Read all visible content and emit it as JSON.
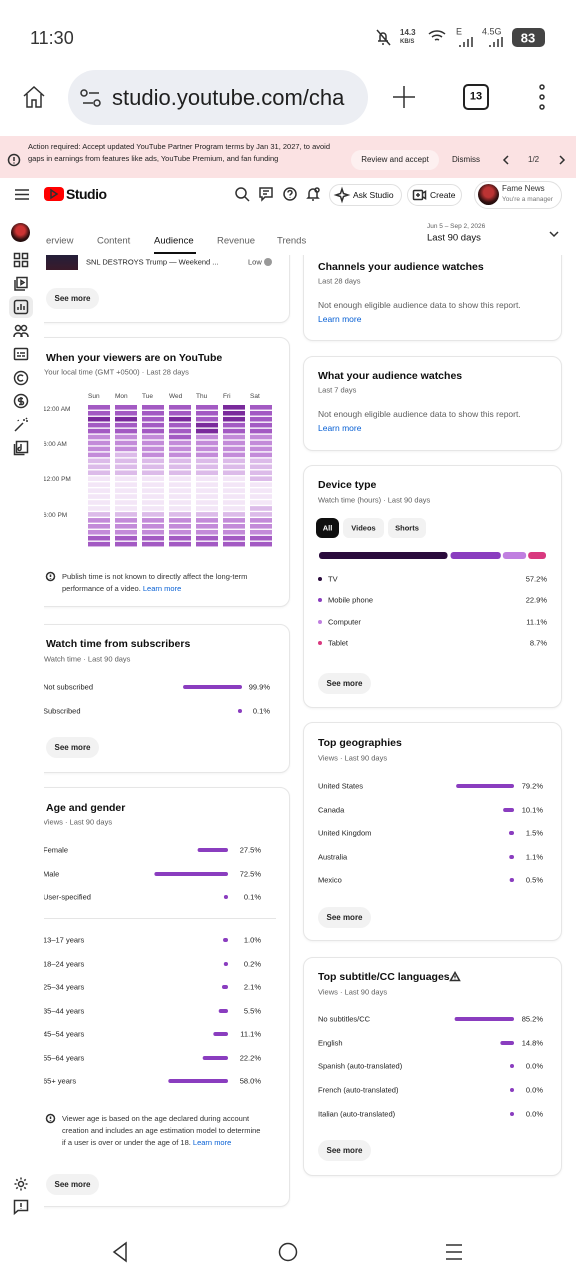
{
  "status_bar": {
    "time": "11:30",
    "net_speed": "14.3",
    "net_unit": "KB/S",
    "signal_1": "E",
    "signal_2": "4.5G",
    "battery": "83"
  },
  "browser": {
    "url": "studio.youtube.com/cha",
    "tabs": "13"
  },
  "banner": {
    "text": "Action required: Accept updated YouTube Partner Program terms by Jan 31, 2027, to avoid gaps in earnings from features like ads, YouTube Premium, and fan funding",
    "review": "Review and accept",
    "dismiss": "Dismiss",
    "pager": "1/2"
  },
  "header": {
    "logo": "Studio",
    "ask": "Ask Studio",
    "create": "Create",
    "account": "Fame News",
    "role": "You're a manager"
  },
  "tabs": [
    "erview",
    "Content",
    "Audience",
    "Revenue",
    "Trends"
  ],
  "date_range": {
    "dates": "Jun 5 – Sep 2, 2026",
    "label": "Last 90 days"
  },
  "top_content": {
    "title": "SNL DESTROYS Trump — Weekend ...",
    "level": "Low",
    "button": "See more"
  },
  "viewers_time": {
    "title": "When your viewers are on YouTube",
    "subtitle": "Your local time (GMT +0500) · Last 28 days",
    "days": [
      "Sun",
      "Mon",
      "Tue",
      "Wed",
      "Thu",
      "Fri",
      "Sat"
    ],
    "times": [
      "12:00 AM",
      "6:00 AM",
      "12:00 PM",
      "6:00 PM"
    ],
    "colors": [
      "#f3e6f7",
      "#dcbbe9",
      "#c38bd9",
      "#a35ac3",
      "#7a2a9c"
    ],
    "heatmap": [
      [
        4,
        4,
        4,
        4,
        4,
        5,
        4
      ],
      [
        4,
        4,
        4,
        4,
        4,
        5,
        4
      ],
      [
        5,
        5,
        4,
        5,
        4,
        5,
        4
      ],
      [
        4,
        4,
        4,
        4,
        5,
        4,
        4
      ],
      [
        4,
        4,
        4,
        4,
        5,
        4,
        4
      ],
      [
        3,
        3,
        3,
        4,
        3,
        3,
        3
      ],
      [
        3,
        3,
        3,
        3,
        3,
        3,
        3
      ],
      [
        3,
        3,
        3,
        3,
        3,
        3,
        3
      ],
      [
        3,
        2,
        3,
        3,
        3,
        3,
        3
      ],
      [
        2,
        2,
        2,
        2,
        2,
        2,
        2
      ],
      [
        2,
        2,
        2,
        2,
        2,
        2,
        2
      ],
      [
        2,
        2,
        2,
        2,
        2,
        2,
        2
      ],
      [
        1,
        1,
        1,
        1,
        1,
        1,
        2
      ],
      [
        1,
        1,
        1,
        1,
        1,
        1,
        1
      ],
      [
        1,
        1,
        1,
        1,
        1,
        1,
        1
      ],
      [
        1,
        1,
        1,
        1,
        1,
        1,
        1
      ],
      [
        1,
        1,
        1,
        1,
        1,
        1,
        1
      ],
      [
        1,
        1,
        1,
        1,
        1,
        1,
        2
      ],
      [
        2,
        2,
        2,
        2,
        2,
        2,
        2
      ],
      [
        3,
        3,
        3,
        3,
        3,
        3,
        3
      ],
      [
        3,
        3,
        3,
        3,
        3,
        3,
        3
      ],
      [
        3,
        3,
        3,
        3,
        3,
        3,
        3
      ],
      [
        4,
        4,
        4,
        4,
        4,
        4,
        4
      ],
      [
        4,
        4,
        4,
        4,
        4,
        4,
        4
      ]
    ],
    "note": "Publish time is not known to directly affect the long-term performance of a video.",
    "link": "Learn more"
  },
  "subscribers": {
    "title": "Watch time from subscribers",
    "subtitle": "Watch time · Last 90 days",
    "categories": [
      "Not subscribed",
      "Subscribed"
    ],
    "values": [
      99.9,
      0.1
    ],
    "value_labels": [
      "99.9%",
      "0.1%"
    ],
    "button": "See more"
  },
  "age_gender": {
    "title": "Age and gender",
    "subtitle": "Views · Last 90 days",
    "gender": {
      "categories": [
        "Female",
        "Male",
        "User-specified"
      ],
      "values": [
        27.5,
        72.5,
        0.1
      ],
      "value_labels": [
        "27.5%",
        "72.5%",
        "0.1%"
      ]
    },
    "age": {
      "categories": [
        "13–17 years",
        "18–24 years",
        "25–34 years",
        "35–44 years",
        "45–54 years",
        "55–64 years",
        "65+ years"
      ],
      "values": [
        1.0,
        0.2,
        2.1,
        5.5,
        11.1,
        22.2,
        58.0
      ],
      "value_labels": [
        "1.0%",
        "0.2%",
        "2.1%",
        "5.5%",
        "11.1%",
        "22.2%",
        "58.0%"
      ]
    },
    "note": "Viewer age is based on the age declared during account creation and includes an age estimation model to determine if a user is over or under the age of 18.",
    "link": "Learn more",
    "button": "See more"
  },
  "channels": {
    "title": "Channels your audience watches",
    "subtitle": "Last 28 days",
    "message": "Not enough eligible audience data to show this report.",
    "link": "Learn more"
  },
  "what_watches": {
    "title": "What your audience watches",
    "subtitle": "Last 7 days",
    "message": "Not enough eligible audience data to show this report.",
    "link": "Learn more"
  },
  "device": {
    "title": "Device type",
    "subtitle": "Watch time (hours) · Last 90 days",
    "filters": [
      "All",
      "Videos",
      "Shorts"
    ],
    "categories": [
      "TV",
      "Mobile phone",
      "Computer",
      "Tablet"
    ],
    "values": [
      57.2,
      22.9,
      11.1,
      8.7
    ],
    "value_labels": [
      "57.2%",
      "22.9%",
      "11.1%",
      "8.7%"
    ],
    "colors": [
      "#2a0b3c",
      "#8a3dbf",
      "#c07fe0",
      "#d9397f"
    ],
    "button": "See more"
  },
  "geographies": {
    "title": "Top geographies",
    "subtitle": "Views · Last 90 days",
    "categories": [
      "United States",
      "Canada",
      "United Kingdom",
      "Australia",
      "Mexico"
    ],
    "values": [
      79.2,
      10.1,
      1.5,
      1.1,
      0.5
    ],
    "value_labels": [
      "79.2%",
      "10.1%",
      "1.5%",
      "1.1%",
      "0.5%"
    ],
    "button": "See more"
  },
  "subtitles": {
    "title": "Top subtitle/CC languages",
    "subtitle": "Views · Last 90 days",
    "categories": [
      "No subtitles/CC",
      "English",
      "Spanish (auto-translated)",
      "French (auto-translated)",
      "Italian (auto-translated)"
    ],
    "values": [
      85.2,
      14.8,
      0.0,
      0.0,
      0.0
    ],
    "value_labels": [
      "85.2%",
      "14.8%",
      "0.0%",
      "0.0%",
      "0.0%"
    ],
    "button": "See more"
  }
}
